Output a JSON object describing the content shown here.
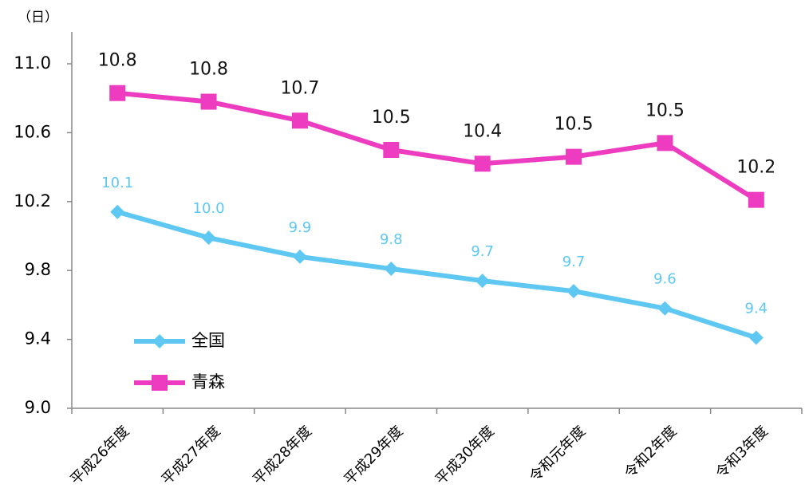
{
  "chart_data": {
    "type": "line",
    "y_label": "（日）",
    "categories": [
      "平成26年度",
      "平成27年度",
      "平成28年度",
      "平成29年度",
      "平成30年度",
      "令和元年度",
      "令和2年度",
      "令和3年度"
    ],
    "series": [
      {
        "name": "全国",
        "color": "#5ec8f2",
        "marker": "diamond",
        "values": [
          10.14,
          9.99,
          9.88,
          9.81,
          9.74,
          9.68,
          9.58,
          9.41
        ],
        "value_labels": [
          "10.1",
          "10.0",
          "9.9",
          "9.8",
          "9.7",
          "9.7",
          "9.6",
          "9.4"
        ]
      },
      {
        "name": "青森",
        "color": "#ee3cc0",
        "marker": "square",
        "values": [
          10.83,
          10.78,
          10.67,
          10.5,
          10.42,
          10.46,
          10.54,
          10.21
        ],
        "value_labels": [
          "10.8",
          "10.8",
          "10.7",
          "10.5",
          "10.4",
          "10.5",
          "10.5",
          "10.2"
        ]
      }
    ],
    "ylim": [
      9.0,
      11.0
    ],
    "yticks": [
      {
        "value": 9.0,
        "label": "9.0"
      },
      9.4,
      9.8,
      10.2,
      10.6,
      {
        "value": 11.0,
        "label": "11.0"
      }
    ],
    "legend": "lower left"
  }
}
